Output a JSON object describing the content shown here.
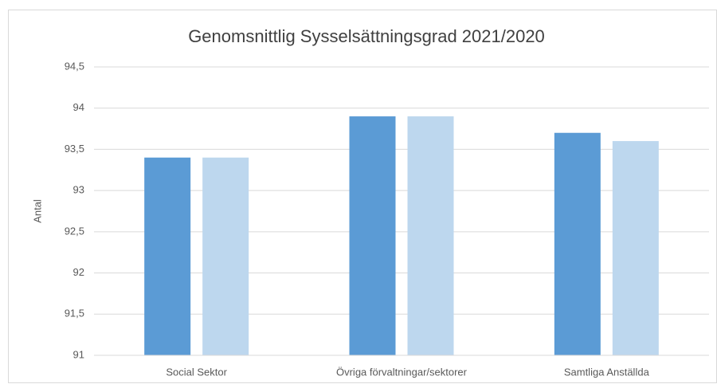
{
  "chart_data": {
    "type": "bar",
    "title": "Genomsnittlig Sysselsättningsgrad 2021/2020",
    "y_label": "Antal",
    "categories": [
      "Social Sektor",
      "Övriga förvaltningar/sektorer",
      "Samtliga Anställda"
    ],
    "series": [
      {
        "color": "#5b9bd5",
        "values": [
          93.4,
          93.9,
          93.7
        ]
      },
      {
        "color": "#bdd7ee",
        "values": [
          93.4,
          93.9,
          93.6
        ]
      }
    ],
    "ylim": [
      91,
      94.5
    ],
    "yticks": [
      91,
      {
        "value": 91.5,
        "label": "91,5"
      },
      92,
      {
        "value": 92.5,
        "label": "92,5"
      },
      93,
      {
        "value": 93.5,
        "label": "93,5"
      },
      94,
      {
        "value": 94.5,
        "label": "94,5"
      }
    ],
    "grid": true
  }
}
